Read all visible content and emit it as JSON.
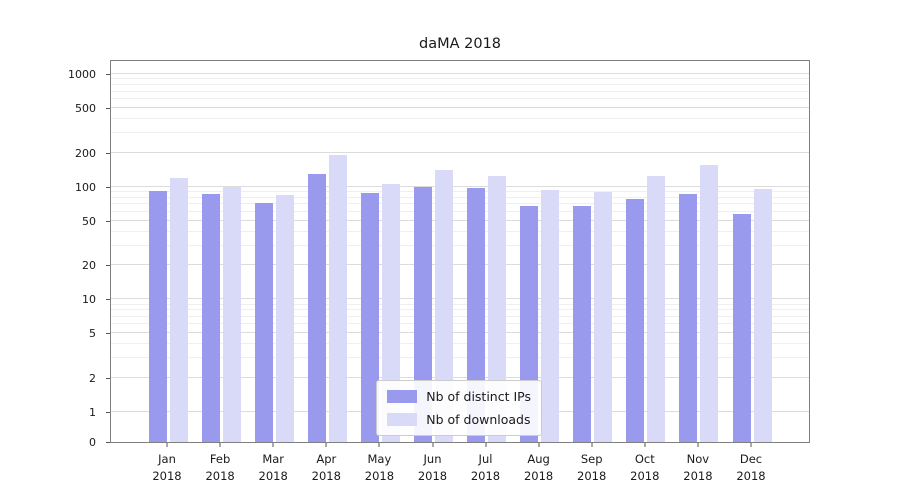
{
  "chart_data": {
    "type": "bar",
    "title": "daMA 2018",
    "categories": [
      "Jan 2018",
      "Feb 2018",
      "Mar 2018",
      "Apr 2018",
      "May 2018",
      "Jun 2018",
      "Jul 2018",
      "Aug 2018",
      "Sep 2018",
      "Oct 2018",
      "Nov 2018",
      "Dec 2018"
    ],
    "series": [
      {
        "name": "Nb of distinct IPs",
        "color": "#9999ee",
        "values": [
          92,
          87,
          71,
          130,
          88,
          100,
          97,
          68,
          67,
          78,
          86,
          57
        ]
      },
      {
        "name": "Nb of downloads",
        "color": "#d9d9f8",
        "values": [
          120,
          100,
          85,
          190,
          105,
          140,
          125,
          93,
          89,
          125,
          155,
          96
        ]
      }
    ],
    "xlabel": "",
    "ylabel": "",
    "yscale": "symlog",
    "y_ticks": [
      0,
      1,
      2,
      5,
      10,
      20,
      50,
      100,
      200,
      500,
      1000
    ],
    "ylim": [
      0,
      1300
    ],
    "grid": true,
    "legend_position": "lower center"
  }
}
